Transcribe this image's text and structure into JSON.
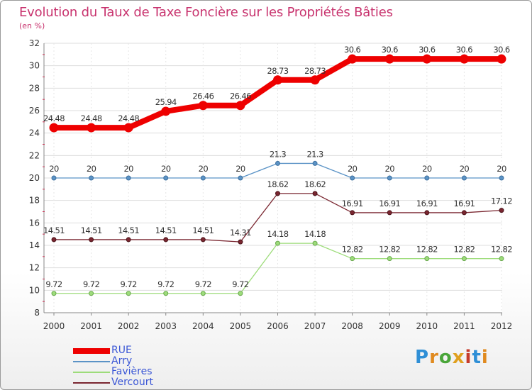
{
  "title": "Evolution du Taux de Taxe Foncière sur les Propriétés Bâties",
  "subtitle": "(en %)",
  "brand": {
    "text": "Proxiti",
    "colors": [
      "#2f8fd6",
      "#e08a1f",
      "#4aa63a",
      "#e0a01f",
      "#c63b2b",
      "#2f8fd6",
      "#e08a1f"
    ]
  },
  "chart_data": {
    "type": "line",
    "x": [
      "2000",
      "2001",
      "2002",
      "2003",
      "2004",
      "2005",
      "2006",
      "2007",
      "2008",
      "2009",
      "2010",
      "2011",
      "2012"
    ],
    "ylim": [
      8,
      32
    ],
    "yticks": [
      8,
      10,
      12,
      14,
      16,
      18,
      20,
      22,
      24,
      26,
      28,
      30,
      32
    ],
    "grid": true,
    "legend_position": "bottom-left",
    "series": [
      {
        "name": "RUE",
        "color": "#ee0000",
        "values": [
          24.48,
          24.48,
          24.48,
          25.94,
          26.46,
          26.46,
          28.73,
          28.73,
          30.6,
          30.6,
          30.6,
          30.6,
          30.6
        ],
        "labels": [
          "24.48",
          "24.48",
          "24.48",
          "25.94",
          "26.46",
          "26.46",
          "28.73",
          "28.73",
          "30.6",
          "30.6",
          "30.6",
          "30.6",
          "30.6"
        ]
      },
      {
        "name": "Arry",
        "color": "#5b93c6",
        "values": [
          20,
          20,
          20,
          20,
          20,
          20,
          21.3,
          21.3,
          20,
          20,
          20,
          20,
          20
        ],
        "labels": [
          "20",
          "20",
          "20",
          "20",
          "20",
          "20",
          "21.3",
          "21.3",
          "20",
          "20",
          "20",
          "20",
          "20"
        ]
      },
      {
        "name": "Favières",
        "color": "#9ddc7a",
        "values": [
          9.72,
          9.72,
          9.72,
          9.72,
          9.72,
          9.72,
          14.18,
          14.18,
          12.82,
          12.82,
          12.82,
          12.82,
          12.82
        ],
        "labels": [
          "9.72",
          "9.72",
          "9.72",
          "9.72",
          "9.72",
          "9.72",
          "14.18",
          "14.18",
          "12.82",
          "12.82",
          "12.82",
          "12.82",
          "12.82"
        ]
      },
      {
        "name": "Vercourt",
        "color": "#7a2630",
        "values": [
          14.51,
          14.51,
          14.51,
          14.51,
          14.51,
          14.31,
          18.62,
          18.62,
          16.91,
          16.91,
          16.91,
          16.91,
          17.12
        ],
        "labels": [
          "14.51",
          "14.51",
          "14.51",
          "14.51",
          "14.51",
          "14.31",
          "18.62",
          "18.62",
          "16.91",
          "16.91",
          "16.91",
          "16.91",
          "17.12"
        ]
      }
    ]
  }
}
